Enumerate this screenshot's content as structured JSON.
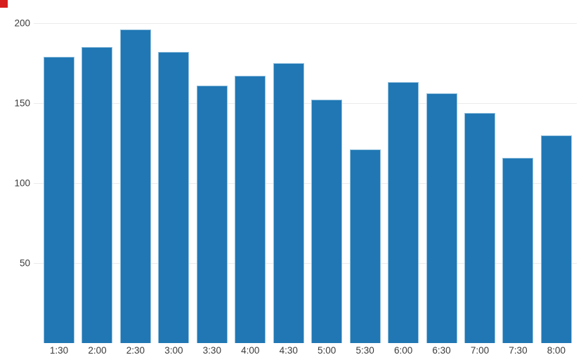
{
  "chart_data": {
    "type": "bar",
    "title": "",
    "xlabel": "",
    "ylabel": "",
    "categories": [
      "1:30",
      "2:00",
      "2:30",
      "3:00",
      "3:30",
      "4:00",
      "4:30",
      "5:00",
      "5:30",
      "6:00",
      "6:30",
      "7:00",
      "7:30",
      "8:00"
    ],
    "values": [
      179,
      185,
      196,
      182,
      161,
      167,
      175,
      152,
      121,
      163,
      156,
      144,
      116,
      130
    ],
    "ylim": [
      0,
      200
    ],
    "yticks": [
      50,
      100,
      150,
      200
    ],
    "grid": "horizontal",
    "legend_position": "none",
    "colors": {
      "background": "#ffffff",
      "bar_fill": "#2077b4",
      "bar_stroke": "#94c1de",
      "gridline": "#ebebeb",
      "tick_text": "#3b3b3b"
    }
  },
  "overlay": {
    "red_square_marker": {
      "color": "#d71e1e"
    }
  }
}
